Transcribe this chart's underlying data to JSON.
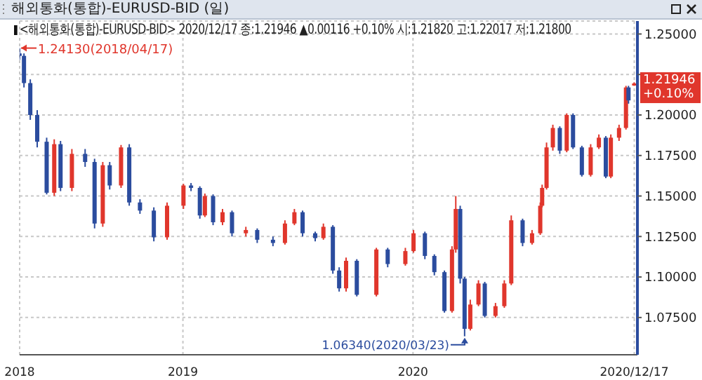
{
  "chart_data": {
    "type": "candlestick",
    "title": "해외통화(통합)-EURUSD-BID (일)",
    "subtitle": "<해외통화(통합)-EURUSD-BID> 2020/12/17 종:1.21946 ▲0.00116 +0.10% 시:1.21820 고:1.22017 저:1.21800",
    "x": [
      "2018-04-17",
      "2018-04-24",
      "2018-05-04",
      "2018-05-15",
      "2018-05-30",
      "2018-06-11",
      "2018-06-21",
      "2018-07-09",
      "2018-07-30",
      "2018-08-14",
      "2018-08-27",
      "2018-09-07",
      "2018-09-25",
      "2018-10-08",
      "2018-10-25",
      "2018-11-16",
      "2018-12-07",
      "2019-01-02",
      "2019-01-14",
      "2019-01-28",
      "2019-02-05",
      "2019-02-18",
      "2019-03-05",
      "2019-03-20",
      "2019-04-11",
      "2019-04-29",
      "2019-05-24",
      "2019-06-12",
      "2019-06-27",
      "2019-07-10",
      "2019-07-30",
      "2019-08-12",
      "2019-08-27",
      "2019-09-06",
      "2019-09-17",
      "2019-10-04",
      "2019-11-04",
      "2019-11-22",
      "2019-12-20",
      "2020-01-02",
      "2020-01-20",
      "2020-02-04",
      "2020-02-20",
      "2020-03-03",
      "2020-03-09",
      "2020-03-16",
      "2020-03-23",
      "2020-04-01",
      "2020-04-14",
      "2020-04-24",
      "2020-05-11",
      "2020-05-25",
      "2020-06-05",
      "2020-06-23",
      "2020-07-08",
      "2020-07-21",
      "2020-07-24",
      "2020-07-31",
      "2020-08-10",
      "2020-08-21",
      "2020-09-01",
      "2020-09-11",
      "2020-09-25",
      "2020-10-09",
      "2020-10-22",
      "2020-11-02",
      "2020-11-10",
      "2020-11-23",
      "2020-12-04",
      "2020-12-08",
      "2020-12-17"
    ],
    "ohlc": [
      [
        1.238,
        1.2413,
        1.234,
        1.2365
      ],
      [
        1.2365,
        1.238,
        1.217,
        1.2197
      ],
      [
        1.2197,
        1.222,
        1.197,
        1.2
      ],
      [
        1.2,
        1.203,
        1.18,
        1.1835
      ],
      [
        1.1835,
        1.186,
        1.151,
        1.152
      ],
      [
        1.152,
        1.185,
        1.15,
        1.182
      ],
      [
        1.182,
        1.184,
        1.153,
        1.155
      ],
      [
        1.155,
        1.179,
        1.153,
        1.176
      ],
      [
        1.176,
        1.179,
        1.168,
        1.171
      ],
      [
        1.171,
        1.173,
        1.13,
        1.133
      ],
      [
        1.133,
        1.171,
        1.131,
        1.169
      ],
      [
        1.169,
        1.171,
        1.154,
        1.1565
      ],
      [
        1.1565,
        1.1815,
        1.155,
        1.18
      ],
      [
        1.18,
        1.182,
        1.144,
        1.146
      ],
      [
        1.146,
        1.148,
        1.139,
        1.141
      ],
      [
        1.141,
        1.143,
        1.122,
        1.1245
      ],
      [
        1.1245,
        1.146,
        1.123,
        1.144
      ],
      [
        1.144,
        1.1575,
        1.142,
        1.1565
      ],
      [
        1.1565,
        1.158,
        1.153,
        1.155
      ],
      [
        1.155,
        1.156,
        1.136,
        1.138
      ],
      [
        1.138,
        1.1515,
        1.137,
        1.15
      ],
      [
        1.15,
        1.151,
        1.132,
        1.1338
      ],
      [
        1.1338,
        1.142,
        1.132,
        1.14
      ],
      [
        1.14,
        1.141,
        1.125,
        1.127
      ],
      [
        1.127,
        1.131,
        1.125,
        1.129
      ],
      [
        1.129,
        1.13,
        1.121,
        1.123
      ],
      [
        1.123,
        1.125,
        1.119,
        1.121
      ],
      [
        1.121,
        1.135,
        1.12,
        1.133
      ],
      [
        1.133,
        1.142,
        1.132,
        1.14
      ],
      [
        1.14,
        1.141,
        1.125,
        1.127
      ],
      [
        1.127,
        1.128,
        1.122,
        1.124
      ],
      [
        1.124,
        1.133,
        1.123,
        1.131
      ],
      [
        1.131,
        1.132,
        1.102,
        1.104
      ],
      [
        1.104,
        1.106,
        1.091,
        1.093
      ],
      [
        1.093,
        1.112,
        1.091,
        1.11
      ],
      [
        1.11,
        1.111,
        1.088,
        1.089
      ],
      [
        1.089,
        1.118,
        1.088,
        1.117
      ],
      [
        1.117,
        1.118,
        1.106,
        1.108
      ],
      [
        1.108,
        1.118,
        1.107,
        1.116
      ],
      [
        1.116,
        1.129,
        1.115,
        1.127
      ],
      [
        1.127,
        1.128,
        1.111,
        1.113
      ],
      [
        1.113,
        1.114,
        1.101,
        1.103
      ],
      [
        1.103,
        1.104,
        1.078,
        1.079
      ],
      [
        1.079,
        1.119,
        1.078,
        1.117
      ],
      [
        1.117,
        1.15,
        1.115,
        1.142
      ],
      [
        1.142,
        1.144,
        1.096,
        1.099
      ],
      [
        1.099,
        1.1,
        1.0634,
        1.068
      ],
      [
        1.068,
        1.086,
        1.067,
        1.083
      ],
      [
        1.083,
        1.098,
        1.082,
        1.096
      ],
      [
        1.096,
        1.097,
        1.075,
        1.076
      ],
      [
        1.076,
        1.084,
        1.075,
        1.082
      ],
      [
        1.082,
        1.098,
        1.081,
        1.096
      ],
      [
        1.096,
        1.138,
        1.095,
        1.135
      ],
      [
        1.135,
        1.136,
        1.119,
        1.121
      ],
      [
        1.121,
        1.129,
        1.12,
        1.127
      ],
      [
        1.127,
        1.146,
        1.126,
        1.144
      ],
      [
        1.144,
        1.157,
        1.143,
        1.155
      ],
      [
        1.155,
        1.183,
        1.154,
        1.18
      ],
      [
        1.18,
        1.194,
        1.178,
        1.192
      ],
      [
        1.192,
        1.193,
        1.176,
        1.178
      ],
      [
        1.178,
        1.201,
        1.177,
        1.2
      ],
      [
        1.2,
        1.201,
        1.179,
        1.18
      ],
      [
        1.18,
        1.181,
        1.162,
        1.163
      ],
      [
        1.163,
        1.182,
        1.162,
        1.18
      ],
      [
        1.18,
        1.188,
        1.179,
        1.186
      ],
      [
        1.186,
        1.187,
        1.161,
        1.162
      ],
      [
        1.162,
        1.188,
        1.161,
        1.186
      ],
      [
        1.186,
        1.194,
        1.184,
        1.192
      ],
      [
        1.192,
        1.218,
        1.191,
        1.217
      ],
      [
        1.217,
        1.218,
        1.207,
        1.209
      ],
      [
        1.2182,
        1.22017,
        1.218,
        1.21946
      ]
    ],
    "colors": [
      "#2b4c9e",
      "#2b4c9e",
      "#2b4c9e",
      "#2b4c9e",
      "#2b4c9e",
      "#e0362c",
      "#2b4c9e",
      "#e0362c",
      "#2b4c9e",
      "#2b4c9e",
      "#e0362c",
      "#2b4c9e",
      "#e0362c",
      "#2b4c9e",
      "#2b4c9e",
      "#2b4c9e",
      "#e0362c",
      "#e0362c",
      "#2b4c9e",
      "#2b4c9e",
      "#e0362c",
      "#2b4c9e",
      "#e0362c",
      "#2b4c9e",
      "#e0362c",
      "#2b4c9e",
      "#2b4c9e",
      "#e0362c",
      "#e0362c",
      "#2b4c9e",
      "#2b4c9e",
      "#e0362c",
      "#2b4c9e",
      "#2b4c9e",
      "#e0362c",
      "#2b4c9e",
      "#e0362c",
      "#2b4c9e",
      "#e0362c",
      "#e0362c",
      "#2b4c9e",
      "#2b4c9e",
      "#2b4c9e",
      "#e0362c",
      "#e0362c",
      "#2b4c9e",
      "#2b4c9e",
      "#e0362c",
      "#e0362c",
      "#2b4c9e",
      "#e0362c",
      "#e0362c",
      "#e0362c",
      "#2b4c9e",
      "#e0362c",
      "#e0362c",
      "#e0362c",
      "#e0362c",
      "#e0362c",
      "#2b4c9e",
      "#e0362c",
      "#2b4c9e",
      "#2b4c9e",
      "#e0362c",
      "#e0362c",
      "#2b4c9e",
      "#e0362c",
      "#e0362c",
      "#e0362c",
      "#2b4c9e",
      "#e0362c"
    ],
    "xlim": [
      "2018-04-17",
      "2020-12-22"
    ],
    "xticks": [
      {
        "value": "2018-04-17",
        "label": "2018"
      },
      {
        "value": "2019-01-01",
        "label": "2019"
      },
      {
        "value": "2020-01-01",
        "label": "2020"
      },
      {
        "value": "2020-12-17",
        "label": "2020/12/17"
      }
    ],
    "ylim": [
      1.052,
      1.258
    ],
    "yticks": [
      {
        "value": 1.075,
        "label": "1.07500"
      },
      {
        "value": 1.1,
        "label": "1.10000"
      },
      {
        "value": 1.125,
        "label": "1.12500"
      },
      {
        "value": 1.15,
        "label": "1.15000"
      },
      {
        "value": 1.175,
        "label": "1.17500"
      },
      {
        "value": 1.2,
        "label": "1.20000"
      },
      {
        "value": 1.225,
        "label": null
      },
      {
        "value": 1.25,
        "label": "1.25000"
      }
    ],
    "grid": true,
    "annotations": [
      {
        "text": "1.24130(2018/04/17)",
        "x": "2018-04-17",
        "y": 1.2413
      },
      {
        "text": "1.06340(2020/03/23)",
        "x": "2020-03-23",
        "y": 1.0634
      },
      {
        "text": "1.21946 +0.10%",
        "x": "2020-12-17",
        "y": 1.21946
      }
    ]
  }
}
